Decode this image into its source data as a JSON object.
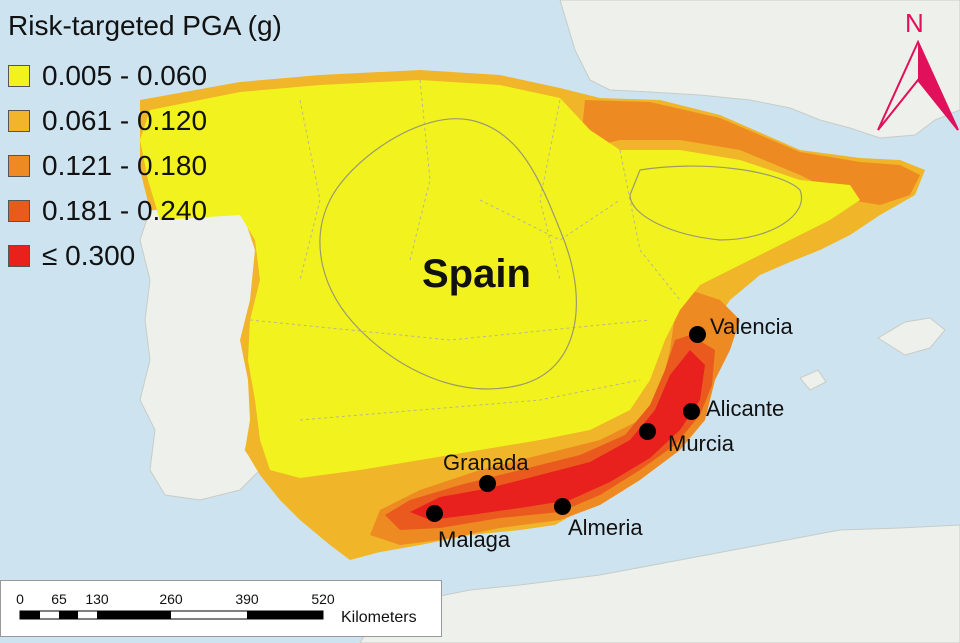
{
  "legend": {
    "title": "Risk-targeted PGA (g)",
    "items": [
      {
        "label": "0.005 - 0.060",
        "color": "#f2f21f"
      },
      {
        "label": "0.061 - 0.120",
        "color": "#f0b528"
      },
      {
        "label": "0.121 - 0.180",
        "color": "#ee8a22"
      },
      {
        "label": "0.181 - 0.240",
        "color": "#ea5a1e"
      },
      {
        "label": "≤ 0.300",
        "color": "#e8201e"
      }
    ]
  },
  "country": "Spain",
  "cities": [
    {
      "name": "Valencia"
    },
    {
      "name": "Alicante"
    },
    {
      "name": "Murcia"
    },
    {
      "name": "Granada"
    },
    {
      "name": "Almeria"
    },
    {
      "name": "Malaga"
    }
  ],
  "scale_bar": {
    "ticks": [
      "0",
      "65",
      "130",
      "260",
      "390",
      "520"
    ],
    "unit": "Kilometers"
  },
  "north_arrow": {
    "label": "N",
    "color": "#e0105a"
  },
  "colors": {
    "sea": "#cde3f0",
    "land": "#eef0ec",
    "border": "#888888"
  }
}
